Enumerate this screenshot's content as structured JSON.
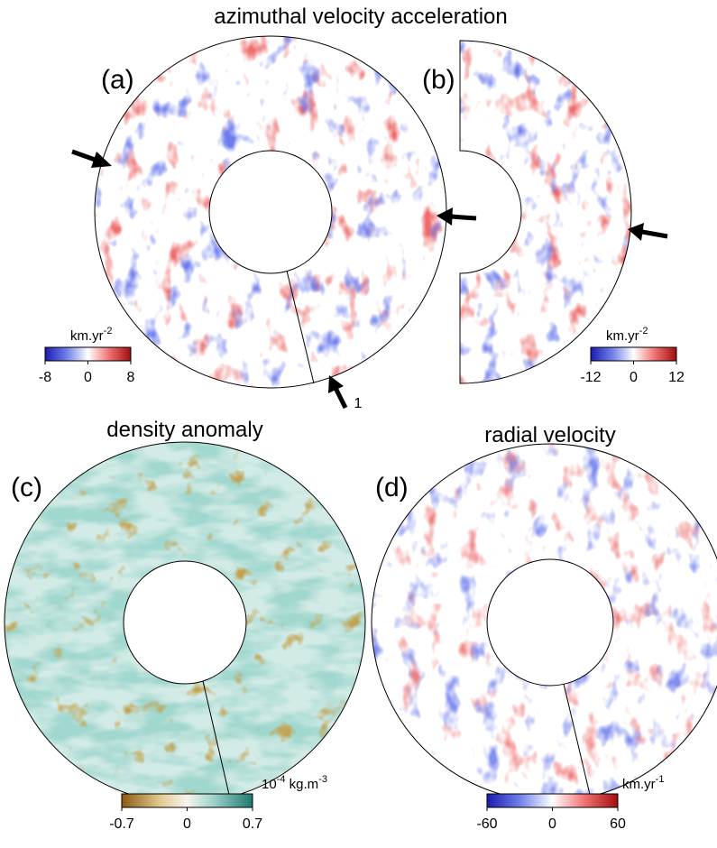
{
  "titles": {
    "top": "azimuthal velocity acceleration",
    "bottom_left": "density anomaly",
    "bottom_right": "radial velocity"
  },
  "panels": {
    "a": {
      "label": "(a)",
      "arrow_label": "1",
      "colorbar": {
        "unit": [
          "km.yr",
          "-2"
        ],
        "ticks": [
          -8,
          0,
          8
        ]
      }
    },
    "b": {
      "label": "(b)",
      "colorbar": {
        "unit": [
          "km.yr",
          "-2"
        ],
        "ticks": [
          -12,
          0,
          12
        ]
      }
    },
    "c": {
      "label": "(c)",
      "colorbar": {
        "unit": [
          "10",
          "-4",
          " kg.m",
          "-3"
        ],
        "ticks": [
          -0.7,
          0,
          0.7
        ]
      }
    },
    "d": {
      "label": "(d)",
      "colorbar": {
        "unit": [
          "km.yr",
          "-1"
        ],
        "ticks": [
          -60,
          0,
          60
        ]
      }
    }
  }
}
